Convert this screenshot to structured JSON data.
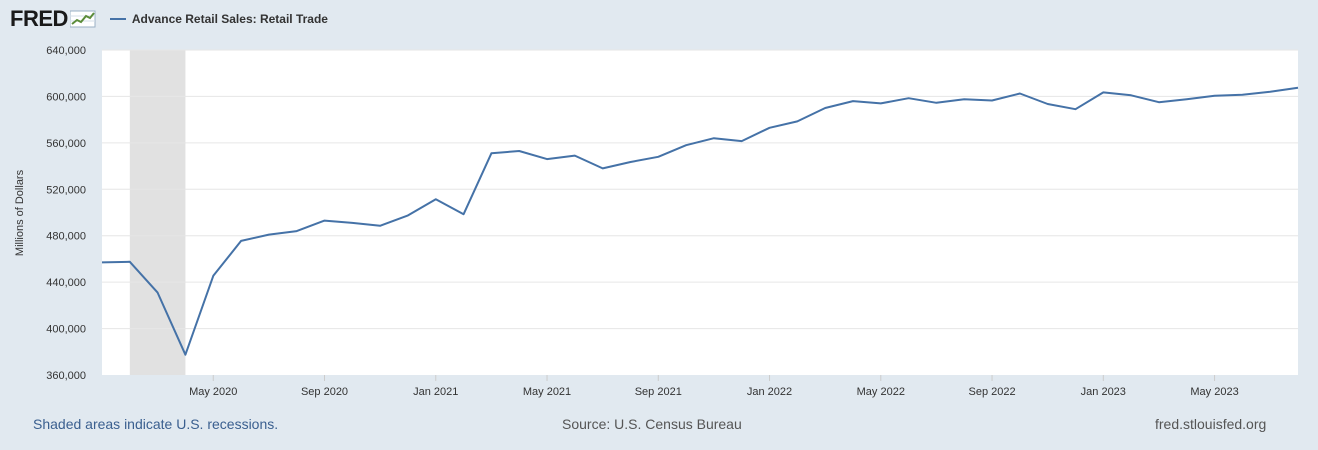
{
  "header": {
    "logo_text": "FRED",
    "legend_label": "Advance Retail Sales: Retail Trade"
  },
  "footer": {
    "recession_note": "Shaded areas indicate U.S. recessions.",
    "source": "Source: U.S. Census Bureau",
    "site": "fred.stlouisfed.org"
  },
  "colors": {
    "background": "#e1e9f0",
    "plot_background": "#ffffff",
    "series": "#4572a7",
    "recession": "#e1e1e1",
    "gridline": "#e6e6e6"
  },
  "chart_data": {
    "type": "line",
    "ylabel": "Millions of Dollars",
    "ylim": [
      360000,
      640000
    ],
    "yticks": [
      360000,
      400000,
      440000,
      480000,
      520000,
      560000,
      600000,
      640000
    ],
    "ytick_labels": [
      "360,000",
      "400,000",
      "440,000",
      "480,000",
      "520,000",
      "560,000",
      "600,000",
      "640,000"
    ],
    "xlim": [
      "2020-01-01",
      "2023-08-01"
    ],
    "xticks": [
      "2020-05-01",
      "2020-09-01",
      "2021-01-01",
      "2021-05-01",
      "2021-09-01",
      "2022-01-01",
      "2022-05-01",
      "2022-09-01",
      "2023-01-01",
      "2023-05-01"
    ],
    "xtick_labels": [
      "May 2020",
      "Sep 2020",
      "Jan 2021",
      "May 2021",
      "Sep 2021",
      "Jan 2022",
      "May 2022",
      "Sep 2022",
      "Jan 2023",
      "May 2023"
    ],
    "grid": true,
    "legend": "top-left",
    "recessions": [
      {
        "start": "2020-02-01",
        "end": "2020-04-01"
      }
    ],
    "series": [
      {
        "name": "Advance Retail Sales: Retail Trade",
        "x": [
          "2020-01-01",
          "2020-02-01",
          "2020-03-01",
          "2020-04-01",
          "2020-05-01",
          "2020-06-01",
          "2020-07-01",
          "2020-08-01",
          "2020-09-01",
          "2020-10-01",
          "2020-11-01",
          "2020-12-01",
          "2021-01-01",
          "2021-02-01",
          "2021-03-01",
          "2021-04-01",
          "2021-05-01",
          "2021-06-01",
          "2021-07-01",
          "2021-08-01",
          "2021-09-01",
          "2021-10-01",
          "2021-11-01",
          "2021-12-01",
          "2022-01-01",
          "2022-02-01",
          "2022-03-01",
          "2022-04-01",
          "2022-05-01",
          "2022-06-01",
          "2022-07-01",
          "2022-08-01",
          "2022-09-01",
          "2022-10-01",
          "2022-11-01",
          "2022-12-01",
          "2023-01-01",
          "2023-02-01",
          "2023-03-01",
          "2023-04-01",
          "2023-05-01",
          "2023-06-01",
          "2023-07-01",
          "2023-08-01"
        ],
        "values": [
          457000,
          457500,
          431000,
          377500,
          445500,
          475500,
          481000,
          484000,
          493000,
          491000,
          488500,
          497500,
          511500,
          498500,
          551000,
          553000,
          546000,
          549000,
          538000,
          543500,
          548000,
          558000,
          564000,
          561500,
          573000,
          578500,
          590000,
          596000,
          594000,
          598500,
          594500,
          597500,
          596500,
          602500,
          593500,
          589000,
          603500,
          601000,
          595000,
          597500,
          600500,
          601500,
          604000,
          607500
        ]
      }
    ]
  }
}
